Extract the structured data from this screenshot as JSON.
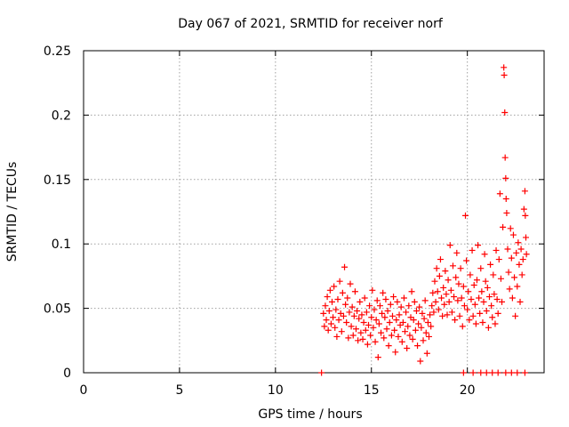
{
  "chart_data": {
    "type": "scatter",
    "title": "Day 067 of 2021, SRMTID for receiver norf",
    "xlabel": "GPS time / hours",
    "ylabel": "SRMTID / TECUs",
    "xlim": [
      0,
      24
    ],
    "ylim": [
      0,
      0.25
    ],
    "x_ticks": [
      0,
      5,
      10,
      15,
      20
    ],
    "x_tick_labels": [
      "0",
      "5",
      "10",
      "15",
      "20"
    ],
    "y_ticks": [
      0,
      0.05,
      0.1,
      0.15,
      0.2,
      0.25
    ],
    "y_tick_labels": [
      "0",
      "0.05",
      "0.1",
      "0.15",
      "0.2",
      "0.25"
    ],
    "grid": true,
    "legend": "none",
    "marker": "plus",
    "color": "#ff0000",
    "series": [
      {
        "points": [
          [
            12.4,
            0.0
          ],
          [
            19.8,
            0.0
          ],
          [
            20.3,
            0.0
          ],
          [
            20.7,
            0.0
          ],
          [
            21.0,
            0.0
          ],
          [
            21.3,
            0.0
          ],
          [
            21.6,
            0.0
          ],
          [
            22.0,
            0.0
          ],
          [
            22.3,
            0.0
          ],
          [
            22.6,
            0.0
          ],
          [
            23.0,
            0.0
          ],
          [
            12.5,
            0.046
          ],
          [
            12.55,
            0.036
          ],
          [
            12.6,
            0.052
          ],
          [
            12.65,
            0.041
          ],
          [
            12.7,
            0.059
          ],
          [
            12.75,
            0.033
          ],
          [
            12.8,
            0.048
          ],
          [
            12.85,
            0.064
          ],
          [
            12.9,
            0.038
          ],
          [
            12.95,
            0.055
          ],
          [
            13.0,
            0.043
          ],
          [
            13.05,
            0.067
          ],
          [
            13.1,
            0.035
          ],
          [
            13.15,
            0.049
          ],
          [
            13.2,
            0.028
          ],
          [
            13.25,
            0.057
          ],
          [
            13.3,
            0.041
          ],
          [
            13.35,
            0.071
          ],
          [
            13.4,
            0.046
          ],
          [
            13.45,
            0.032
          ],
          [
            13.5,
            0.062
          ],
          [
            13.55,
            0.044
          ],
          [
            13.6,
            0.082
          ],
          [
            13.65,
            0.053
          ],
          [
            13.7,
            0.039
          ],
          [
            13.75,
            0.058
          ],
          [
            13.8,
            0.027
          ],
          [
            13.85,
            0.047
          ],
          [
            13.9,
            0.069
          ],
          [
            13.95,
            0.036
          ],
          [
            14.0,
            0.051
          ],
          [
            14.05,
            0.029
          ],
          [
            14.1,
            0.044
          ],
          [
            14.15,
            0.063
          ],
          [
            14.2,
            0.034
          ],
          [
            14.25,
            0.048
          ],
          [
            14.3,
            0.025
          ],
          [
            14.35,
            0.042
          ],
          [
            14.4,
            0.055
          ],
          [
            14.45,
            0.031
          ],
          [
            14.5,
            0.045
          ],
          [
            14.55,
            0.026
          ],
          [
            14.6,
            0.039
          ],
          [
            14.65,
            0.058
          ],
          [
            14.7,
            0.033
          ],
          [
            14.75,
            0.047
          ],
          [
            14.8,
            0.022
          ],
          [
            14.85,
            0.037
          ],
          [
            14.9,
            0.052
          ],
          [
            14.95,
            0.029
          ],
          [
            15.0,
            0.043
          ],
          [
            15.05,
            0.064
          ],
          [
            15.1,
            0.035
          ],
          [
            15.15,
            0.049
          ],
          [
            15.2,
            0.024
          ],
          [
            15.25,
            0.041
          ],
          [
            15.3,
            0.056
          ],
          [
            15.35,
            0.012
          ],
          [
            15.4,
            0.038
          ],
          [
            15.45,
            0.052
          ],
          [
            15.5,
            0.031
          ],
          [
            15.55,
            0.046
          ],
          [
            15.6,
            0.062
          ],
          [
            15.65,
            0.027
          ],
          [
            15.7,
            0.043
          ],
          [
            15.75,
            0.057
          ],
          [
            15.8,
            0.034
          ],
          [
            15.85,
            0.048
          ],
          [
            15.9,
            0.021
          ],
          [
            15.95,
            0.039
          ],
          [
            16.0,
            0.053
          ],
          [
            16.05,
            0.029
          ],
          [
            16.1,
            0.044
          ],
          [
            16.15,
            0.059
          ],
          [
            16.2,
            0.033
          ],
          [
            16.25,
            0.016
          ],
          [
            16.3,
            0.041
          ],
          [
            16.35,
            0.055
          ],
          [
            16.4,
            0.028
          ],
          [
            16.45,
            0.045
          ],
          [
            16.5,
            0.037
          ],
          [
            16.55,
            0.051
          ],
          [
            16.6,
            0.024
          ],
          [
            16.65,
            0.039
          ],
          [
            16.7,
            0.058
          ],
          [
            16.75,
            0.032
          ],
          [
            16.8,
            0.047
          ],
          [
            16.85,
            0.019
          ],
          [
            16.9,
            0.036
          ],
          [
            16.95,
            0.052
          ],
          [
            17.0,
            0.029
          ],
          [
            17.05,
            0.043
          ],
          [
            17.1,
            0.063
          ],
          [
            17.15,
            0.026
          ],
          [
            17.2,
            0.041
          ],
          [
            17.25,
            0.055
          ],
          [
            17.3,
            0.033
          ],
          [
            17.35,
            0.048
          ],
          [
            17.4,
            0.021
          ],
          [
            17.45,
            0.038
          ],
          [
            17.5,
            0.051
          ],
          [
            17.55,
            0.009
          ],
          [
            17.6,
            0.035
          ],
          [
            17.65,
            0.046
          ],
          [
            17.7,
            0.025
          ],
          [
            17.75,
            0.042
          ],
          [
            17.8,
            0.056
          ],
          [
            17.85,
            0.031
          ],
          [
            17.9,
            0.015
          ],
          [
            17.95,
            0.039
          ],
          [
            18.0,
            0.028
          ],
          [
            18.05,
            0.045
          ],
          [
            18.1,
            0.036
          ],
          [
            18.15,
            0.052
          ],
          [
            18.2,
            0.062
          ],
          [
            18.25,
            0.047
          ],
          [
            18.3,
            0.071
          ],
          [
            18.35,
            0.055
          ],
          [
            18.4,
            0.081
          ],
          [
            18.45,
            0.063
          ],
          [
            18.5,
            0.049
          ],
          [
            18.55,
            0.075
          ],
          [
            18.6,
            0.088
          ],
          [
            18.65,
            0.058
          ],
          [
            18.7,
            0.044
          ],
          [
            18.75,
            0.066
          ],
          [
            18.8,
            0.053
          ],
          [
            18.85,
            0.079
          ],
          [
            18.9,
            0.061
          ],
          [
            18.95,
            0.045
          ],
          [
            19.0,
            0.072
          ],
          [
            19.05,
            0.055
          ],
          [
            19.1,
            0.099
          ],
          [
            19.15,
            0.064
          ],
          [
            19.2,
            0.047
          ],
          [
            19.25,
            0.083
          ],
          [
            19.3,
            0.059
          ],
          [
            19.35,
            0.041
          ],
          [
            19.4,
            0.074
          ],
          [
            19.45,
            0.093
          ],
          [
            19.5,
            0.056
          ],
          [
            19.55,
            0.069
          ],
          [
            19.6,
            0.044
          ],
          [
            19.65,
            0.081
          ],
          [
            19.7,
            0.058
          ],
          [
            19.75,
            0.036
          ],
          [
            19.8,
            0.067
          ],
          [
            19.85,
            0.052
          ],
          [
            19.9,
            0.122
          ],
          [
            19.95,
            0.087
          ],
          [
            20.0,
            0.049
          ],
          [
            20.05,
            0.063
          ],
          [
            20.1,
            0.041
          ],
          [
            20.15,
            0.076
          ],
          [
            20.2,
            0.057
          ],
          [
            20.25,
            0.095
          ],
          [
            20.3,
            0.044
          ],
          [
            20.35,
            0.068
          ],
          [
            20.4,
            0.053
          ],
          [
            20.45,
            0.038
          ],
          [
            20.5,
            0.072
          ],
          [
            20.55,
            0.099
          ],
          [
            20.6,
            0.058
          ],
          [
            20.65,
            0.046
          ],
          [
            20.7,
            0.081
          ],
          [
            20.75,
            0.063
          ],
          [
            20.8,
            0.039
          ],
          [
            20.85,
            0.055
          ],
          [
            20.9,
            0.092
          ],
          [
            20.95,
            0.071
          ],
          [
            21.0,
            0.048
          ],
          [
            21.05,
            0.066
          ],
          [
            21.1,
            0.035
          ],
          [
            21.15,
            0.059
          ],
          [
            21.2,
            0.084
          ],
          [
            21.25,
            0.052
          ],
          [
            21.3,
            0.043
          ],
          [
            21.35,
            0.076
          ],
          [
            21.4,
            0.061
          ],
          [
            21.45,
            0.038
          ],
          [
            21.5,
            0.095
          ],
          [
            21.55,
            0.057
          ],
          [
            21.6,
            0.046
          ],
          [
            21.65,
            0.088
          ],
          [
            21.7,
            0.139
          ],
          [
            21.75,
            0.073
          ],
          [
            21.8,
            0.055
          ],
          [
            21.85,
            0.113
          ],
          [
            21.9,
            0.237
          ],
          [
            21.92,
            0.231
          ],
          [
            21.95,
            0.202
          ],
          [
            21.97,
            0.167
          ],
          [
            22.0,
            0.151
          ],
          [
            22.02,
            0.135
          ],
          [
            22.05,
            0.124
          ],
          [
            22.1,
            0.096
          ],
          [
            22.15,
            0.078
          ],
          [
            22.2,
            0.065
          ],
          [
            22.25,
            0.112
          ],
          [
            22.3,
            0.089
          ],
          [
            22.35,
            0.058
          ],
          [
            22.4,
            0.107
          ],
          [
            22.45,
            0.074
          ],
          [
            22.5,
            0.044
          ],
          [
            22.55,
            0.093
          ],
          [
            22.6,
            0.067
          ],
          [
            22.65,
            0.101
          ],
          [
            22.7,
            0.084
          ],
          [
            22.75,
            0.055
          ],
          [
            22.8,
            0.096
          ],
          [
            22.85,
            0.076
          ],
          [
            22.9,
            0.088
          ],
          [
            22.95,
            0.127
          ],
          [
            23.0,
            0.141
          ],
          [
            23.02,
            0.122
          ],
          [
            23.05,
            0.105
          ],
          [
            23.08,
            0.092
          ]
        ]
      }
    ]
  }
}
